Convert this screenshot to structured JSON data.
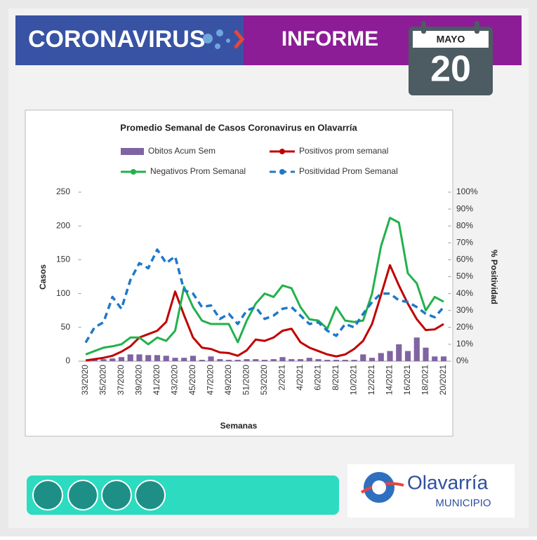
{
  "header": {
    "left": "CORONAVIRUS",
    "right": "INFORME",
    "month": "MAYO",
    "day": "20"
  },
  "chart_data": {
    "type": "combo",
    "title": "Promedio Semanal de Casos Coronavirus en Olavarría",
    "x_label": "Semanas",
    "y_label": "Casos",
    "y2_label": "% Positividad",
    "categories": [
      "33/2020",
      null,
      "35/2020",
      null,
      "37/2020",
      null,
      "39/2020",
      null,
      "41/2020",
      null,
      "43/2020",
      null,
      "45/2020",
      null,
      "47/2020",
      null,
      "49/2020",
      null,
      "51/2020",
      null,
      "53/2020",
      null,
      "2/2021",
      null,
      "4/2021",
      null,
      "6/2021",
      null,
      "8/2021",
      null,
      "10/2021",
      null,
      "12/2021",
      null,
      "14/2021",
      null,
      "16/2021",
      null,
      "18/2021",
      null,
      "20/2021"
    ],
    "ylim": [
      0,
      250
    ],
    "yticks": [
      0,
      50,
      100,
      150,
      200,
      250
    ],
    "y2lim": [
      0,
      100
    ],
    "y2ticks": [
      {
        "value": 0,
        "label": "0%"
      },
      {
        "value": 10,
        "label": "10%"
      },
      {
        "value": 20,
        "label": "20%"
      },
      {
        "value": 30,
        "label": "30%"
      },
      {
        "value": 40,
        "label": "40%"
      },
      {
        "value": 50,
        "label": "50%"
      },
      {
        "value": 60,
        "label": "60%"
      },
      {
        "value": 70,
        "label": "70%"
      },
      {
        "value": 80,
        "label": "80%"
      },
      {
        "value": 90,
        "label": "90%"
      },
      {
        "value": 100,
        "label": "100%"
      }
    ],
    "series": [
      {
        "name": "Obitos Acum Sem",
        "type": "bar",
        "color": "#8064a2",
        "values": [
          0,
          2,
          3,
          4,
          6,
          10,
          10,
          9,
          9,
          8,
          5,
          5,
          8,
          2,
          7,
          3,
          2,
          2,
          3,
          3,
          2,
          3,
          6,
          3,
          3,
          5,
          3,
          2,
          2,
          2,
          2,
          10,
          5,
          12,
          15,
          25,
          15,
          35,
          20,
          7,
          7
        ]
      },
      {
        "name": "Positivos prom semanal",
        "type": "line",
        "color": "#c00000",
        "values": [
          1,
          3,
          5,
          8,
          14,
          22,
          35,
          40,
          45,
          58,
          103,
          68,
          35,
          20,
          18,
          13,
          12,
          8,
          16,
          32,
          30,
          35,
          45,
          48,
          28,
          20,
          15,
          10,
          7,
          10,
          18,
          30,
          55,
          98,
          142,
          112,
          85,
          62,
          46,
          47,
          55
        ]
      },
      {
        "name": "Negativos Prom Semanal",
        "type": "line",
        "color": "#22b14c",
        "values": [
          10,
          15,
          20,
          22,
          25,
          35,
          35,
          25,
          35,
          30,
          45,
          110,
          80,
          60,
          55,
          55,
          55,
          28,
          60,
          85,
          100,
          95,
          112,
          108,
          80,
          62,
          60,
          48,
          80,
          60,
          58,
          60,
          100,
          170,
          212,
          205,
          130,
          115,
          75,
          95,
          88
        ]
      },
      {
        "name": "Positividad Prom Semanal",
        "type": "line",
        "style": "dashed",
        "axis": "y2",
        "color": "#1f78c8",
        "values": [
          11,
          20,
          23,
          38,
          31,
          48,
          58,
          55,
          66,
          58,
          62,
          42,
          40,
          32,
          33,
          25,
          28,
          22,
          30,
          32,
          25,
          27,
          31,
          32,
          27,
          22,
          23,
          18,
          15,
          22,
          20,
          28,
          35,
          40,
          40,
          36,
          35,
          32,
          28,
          26,
          32
        ]
      }
    ]
  },
  "footer": {
    "logo": "Olavarría",
    "logo_sub": "MUNICIPIO"
  }
}
